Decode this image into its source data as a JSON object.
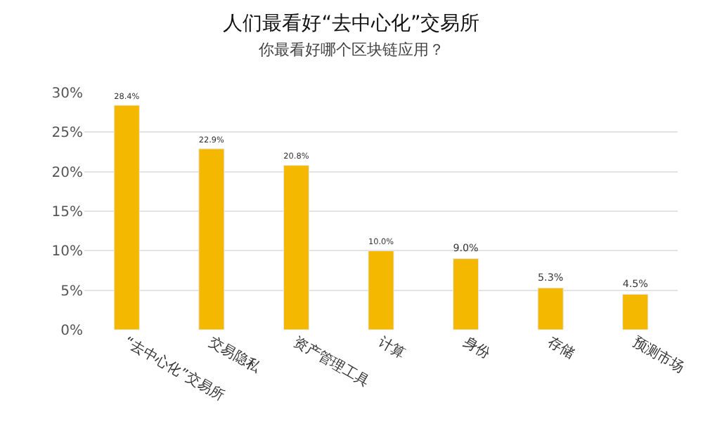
{
  "chart_data": {
    "type": "bar",
    "title": "人们最看好“去中心化”交易所",
    "subtitle": "你最看好哪个区块链应用？",
    "categories": [
      "“去中心化”交易所",
      "交易隐私",
      "资产管理工具",
      "计算",
      "身份",
      "存储",
      "预测市场"
    ],
    "values": [
      28.4,
      22.9,
      20.8,
      10.0,
      9.0,
      5.3,
      4.5
    ],
    "value_labels": [
      "28.4%",
      "22.9%",
      "20.8%",
      "10.0%",
      "9.0%",
      "5.3%",
      "4.5%"
    ],
    "color": "#f5b800",
    "ylim": [
      0,
      30
    ],
    "yticks": [
      {
        "value": 0,
        "label": "0%"
      },
      {
        "value": 5,
        "label": "5%"
      },
      {
        "value": 10,
        "label": "10%"
      },
      {
        "value": 15,
        "label": "15%"
      },
      {
        "value": 20,
        "label": "20%"
      },
      {
        "value": 25,
        "label": "25%"
      },
      {
        "value": 30,
        "label": "30%"
      }
    ],
    "grid": "y",
    "legend": false
  }
}
